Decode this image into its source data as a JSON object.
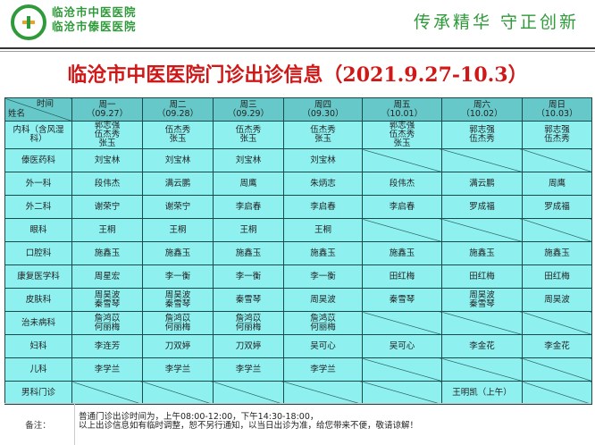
{
  "header": {
    "hospital_names": [
      "临沧市中医医院",
      "临沧市傣医医院"
    ],
    "slogan": "传承精华  守正创新",
    "title": "临沧市中医医院门诊出诊信息（2021.9.27-10.3）",
    "accent_color": "#d01818",
    "brand_color": "#2e9a3a"
  },
  "table": {
    "corner_time": "时间",
    "corner_name": "姓名",
    "days": [
      {
        "day": "周一",
        "date": "（09.27）"
      },
      {
        "day": "周二",
        "date": "（09.28）"
      },
      {
        "day": "周三",
        "date": "（09.29）"
      },
      {
        "day": "周四",
        "date": "（09.30）"
      },
      {
        "day": "周五",
        "date": "（10.01）"
      },
      {
        "day": "周六",
        "date": "（10.02）"
      },
      {
        "day": "周日",
        "date": "（10.03）"
      }
    ],
    "rows": [
      {
        "dept": "内科（含风湿科）",
        "cells": [
          "郭志强\n伍杰秀\n张玉",
          "伍杰秀\n张玉",
          "伍杰秀\n张玉",
          "伍杰秀\n张玉",
          "郭志强\n伍杰秀\n张玉",
          "郭志强\n伍杰秀",
          "郭志强\n伍杰秀"
        ]
      },
      {
        "dept": "傣医药科",
        "cells": [
          "刘宝林",
          "刘宝林",
          "刘宝林",
          "刘宝林",
          "",
          "",
          ""
        ]
      },
      {
        "dept": "外一科",
        "cells": [
          "段伟杰",
          "满云鹏",
          "周鹰",
          "朱炳志",
          "段伟杰",
          "满云鹏",
          "周鹰"
        ]
      },
      {
        "dept": "外二科",
        "cells": [
          "谢荣宁",
          "谢荣宁",
          "李启春",
          "李启春",
          "李启春",
          "罗成福",
          "罗成福"
        ]
      },
      {
        "dept": "眼科",
        "cells": [
          "王桐",
          "王桐",
          "王桐",
          "王桐",
          "",
          "",
          ""
        ]
      },
      {
        "dept": "口腔科",
        "cells": [
          "施鑫玉",
          "施鑫玉",
          "施鑫玉",
          "施鑫玉",
          "施鑫玉",
          "施鑫玉",
          "施鑫玉"
        ]
      },
      {
        "dept": "康复医学科",
        "cells": [
          "周星宏",
          "李一衡",
          "李一衡",
          "李一衡",
          "田红梅",
          "田红梅",
          "田红梅"
        ]
      },
      {
        "dept": "皮肤科",
        "cells": [
          "周昊波\n秦雪琴",
          "周昊波\n秦雪琴",
          "秦雪琴",
          "周昊波",
          "秦雪琴",
          "周昊波\n秦雪琴",
          "周昊波"
        ]
      },
      {
        "dept": "治未病科",
        "cells": [
          "詹鸿苡\n何丽梅",
          "詹鸿苡\n何丽梅",
          "詹鸿苡\n何丽梅",
          "詹鸿苡\n何丽梅",
          "",
          "",
          ""
        ]
      },
      {
        "dept": "妇科",
        "cells": [
          "李连芳",
          "刀双婷",
          "刀双婷",
          "吴可心",
          "吴可心",
          "李金花",
          "李金花"
        ]
      },
      {
        "dept": "儿科",
        "cells": [
          "李学兰",
          "李学兰",
          "李学兰",
          "李学兰",
          "",
          "",
          ""
        ]
      },
      {
        "dept": "男科门诊",
        "cells": [
          "",
          "",
          "",
          "",
          "",
          "王明凯（上午）",
          ""
        ]
      }
    ]
  },
  "note": {
    "label": "备注：",
    "lines": [
      "普通门诊出诊时间为，上午08:00-12:00，下午14:30-18:00，",
      "以上出诊信息如有临时调整，恕不另行通知，以当日出诊为准，给您带来不便，敬请谅解！"
    ]
  }
}
